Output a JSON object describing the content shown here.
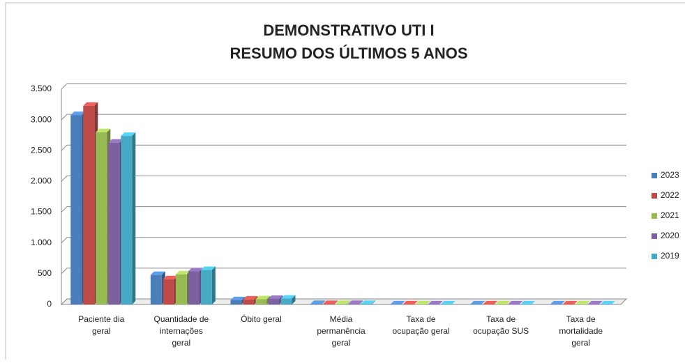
{
  "chart_data": {
    "type": "bar",
    "title": "DEMONSTRATIVO UTI I",
    "subtitle": "RESUMO DOS ÚLTIMOS 5 ANOS",
    "categories": [
      "Paciente dia geral",
      "Quantidade de internações geral",
      "Óbito geral",
      "Média permanência geral",
      "Taxa de ocupação geral",
      "Taxa de ocupação SUS",
      "Taxa de mortalidade geral"
    ],
    "series": [
      {
        "name": "2023",
        "color": "#4a7ebb",
        "values": [
          3080,
          480,
          70,
          8,
          1,
          1,
          1
        ]
      },
      {
        "name": "2022",
        "color": "#be4b48",
        "values": [
          3230,
          410,
          80,
          7,
          1,
          1,
          1
        ]
      },
      {
        "name": "2021",
        "color": "#98b954",
        "values": [
          2800,
          490,
          85,
          7,
          1,
          1,
          1
        ]
      },
      {
        "name": "2020",
        "color": "#7d60a0",
        "values": [
          2630,
          540,
          90,
          8,
          1,
          1,
          1
        ]
      },
      {
        "name": "2019",
        "color": "#46aac5",
        "values": [
          2740,
          560,
          95,
          9,
          1,
          1,
          1
        ]
      }
    ],
    "ylim": [
      0,
      3500
    ],
    "yticks": [
      0,
      500,
      {
        "value": 1000,
        "label": "1.000"
      },
      {
        "value": 1500,
        "label": "1.500"
      },
      {
        "value": 2000,
        "label": "2.000"
      },
      {
        "value": 2500,
        "label": "2.500"
      },
      {
        "value": 3000,
        "label": "3.000"
      },
      {
        "value": 3500,
        "label": "3.500"
      }
    ],
    "grid": true,
    "legend": "right"
  }
}
